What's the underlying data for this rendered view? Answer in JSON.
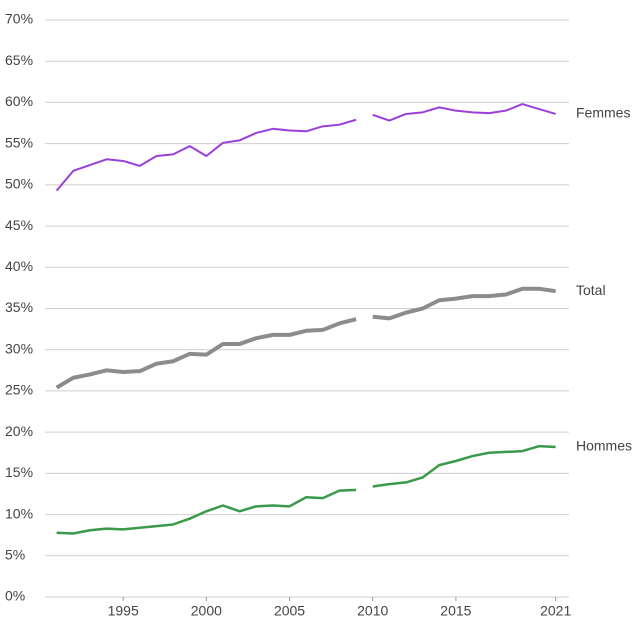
{
  "chart_data": {
    "type": "line",
    "x": [
      1991,
      1992,
      1993,
      1994,
      1995,
      1996,
      1997,
      1998,
      1999,
      2000,
      2001,
      2002,
      2003,
      2004,
      2005,
      2006,
      2007,
      2008,
      2009,
      null,
      2010,
      2011,
      2012,
      2013,
      2014,
      2015,
      2016,
      2017,
      2018,
      2019,
      2020,
      2021
    ],
    "series": [
      {
        "name": "Femmes",
        "color": "#9b3fdb",
        "values": [
          49.3,
          51.7,
          52.4,
          53.1,
          52.9,
          52.3,
          53.5,
          53.7,
          54.7,
          53.5,
          55.1,
          55.4,
          56.3,
          56.8,
          56.6,
          56.5,
          57.1,
          57.3,
          57.9,
          null,
          58.5,
          57.8,
          58.6,
          58.8,
          59.4,
          59.0,
          58.8,
          58.7,
          59.0,
          59.8,
          59.2,
          58.6
        ]
      },
      {
        "name": "Total",
        "color": "#8c8c8c",
        "values": [
          25.4,
          26.6,
          27.0,
          27.5,
          27.3,
          27.4,
          28.3,
          28.6,
          29.5,
          29.4,
          30.7,
          30.7,
          31.4,
          31.8,
          31.8,
          32.3,
          32.4,
          33.2,
          33.7,
          null,
          34.0,
          33.8,
          34.5,
          35.0,
          36.0,
          36.2,
          36.5,
          36.5,
          36.7,
          37.4,
          37.4,
          37.1
        ]
      },
      {
        "name": "Hommes",
        "color": "#3a9a4a",
        "values": [
          7.8,
          7.7,
          8.1,
          8.3,
          8.2,
          8.4,
          8.6,
          8.8,
          9.5,
          10.4,
          11.1,
          10.4,
          11.0,
          11.1,
          11.0,
          12.1,
          12.0,
          12.9,
          13.0,
          null,
          13.4,
          13.7,
          13.9,
          14.5,
          16.0,
          16.5,
          17.1,
          17.5,
          17.6,
          17.7,
          18.3,
          18.2
        ]
      }
    ],
    "xlim": [
      1990.3,
      2021.8
    ],
    "xticks": [
      1995,
      2000,
      2005,
      2010,
      2015,
      2021
    ],
    "ylim": [
      0,
      70
    ],
    "yticks": [
      {
        "value": 0,
        "label": "0%"
      },
      {
        "value": 5,
        "label": "5%"
      },
      {
        "value": 10,
        "label": "10%"
      },
      {
        "value": 15,
        "label": "15%"
      },
      {
        "value": 20,
        "label": "20%"
      },
      {
        "value": 25,
        "label": "25%"
      },
      {
        "value": 30,
        "label": "30%"
      },
      {
        "value": 35,
        "label": "35%"
      },
      {
        "value": 40,
        "label": "40%"
      },
      {
        "value": 45,
        "label": "45%"
      },
      {
        "value": 50,
        "label": "50%"
      },
      {
        "value": 55,
        "label": "55%"
      },
      {
        "value": 60,
        "label": "60%"
      },
      {
        "value": 65,
        "label": "65%"
      },
      {
        "value": 70,
        "label": "70%"
      }
    ],
    "grid": true
  }
}
